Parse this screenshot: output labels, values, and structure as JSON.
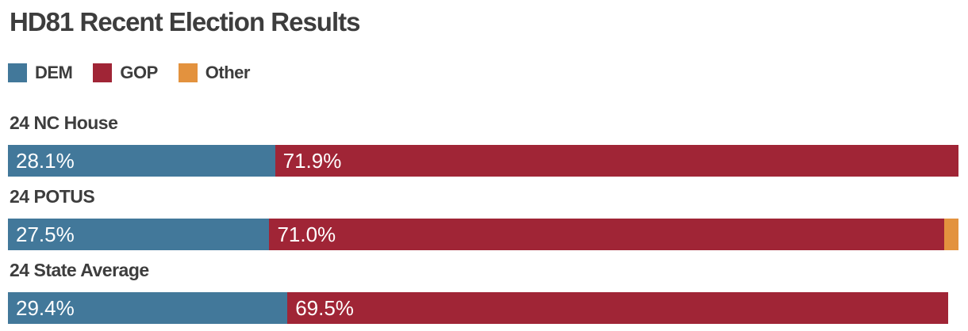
{
  "title": "HD81 Recent Election Results",
  "colors": {
    "DEM": "#42789a",
    "GOP": "#a02536",
    "Other": "#e3923e",
    "heading_text": "#3d3d3d",
    "bar_label_text": "#ffffff",
    "background": "#ffffff"
  },
  "legend": [
    {
      "label": "DEM",
      "color_key": "DEM"
    },
    {
      "label": "GOP",
      "color_key": "GOP"
    },
    {
      "label": "Other",
      "color_key": "Other"
    }
  ],
  "chart_data": {
    "type": "bar",
    "orientation": "horizontal",
    "stacked": true,
    "unit": "%",
    "title": "HD81 Recent Election Results",
    "xlabel": "",
    "ylabel": "",
    "xlim": [
      0,
      100
    ],
    "grid": false,
    "legend_position": "top-left",
    "categories": [
      "24 NC House",
      "24 POTUS",
      "24 State Average"
    ],
    "series_names": [
      "DEM",
      "GOP",
      "Other"
    ],
    "rows": [
      {
        "category": "24 NC House",
        "segments": [
          {
            "name": "DEM",
            "value": 28.1,
            "label": "28.1%"
          },
          {
            "name": "GOP",
            "value": 71.9,
            "label": "71.9%"
          }
        ]
      },
      {
        "category": "24 POTUS",
        "segments": [
          {
            "name": "DEM",
            "value": 27.5,
            "label": "27.5%"
          },
          {
            "name": "GOP",
            "value": 71.0,
            "label": "71.0%"
          },
          {
            "name": "Other",
            "value": 1.5,
            "label": ""
          }
        ]
      },
      {
        "category": "24 State Average",
        "segments": [
          {
            "name": "DEM",
            "value": 29.4,
            "label": "29.4%"
          },
          {
            "name": "GOP",
            "value": 69.5,
            "label": "69.5%"
          }
        ]
      }
    ]
  }
}
